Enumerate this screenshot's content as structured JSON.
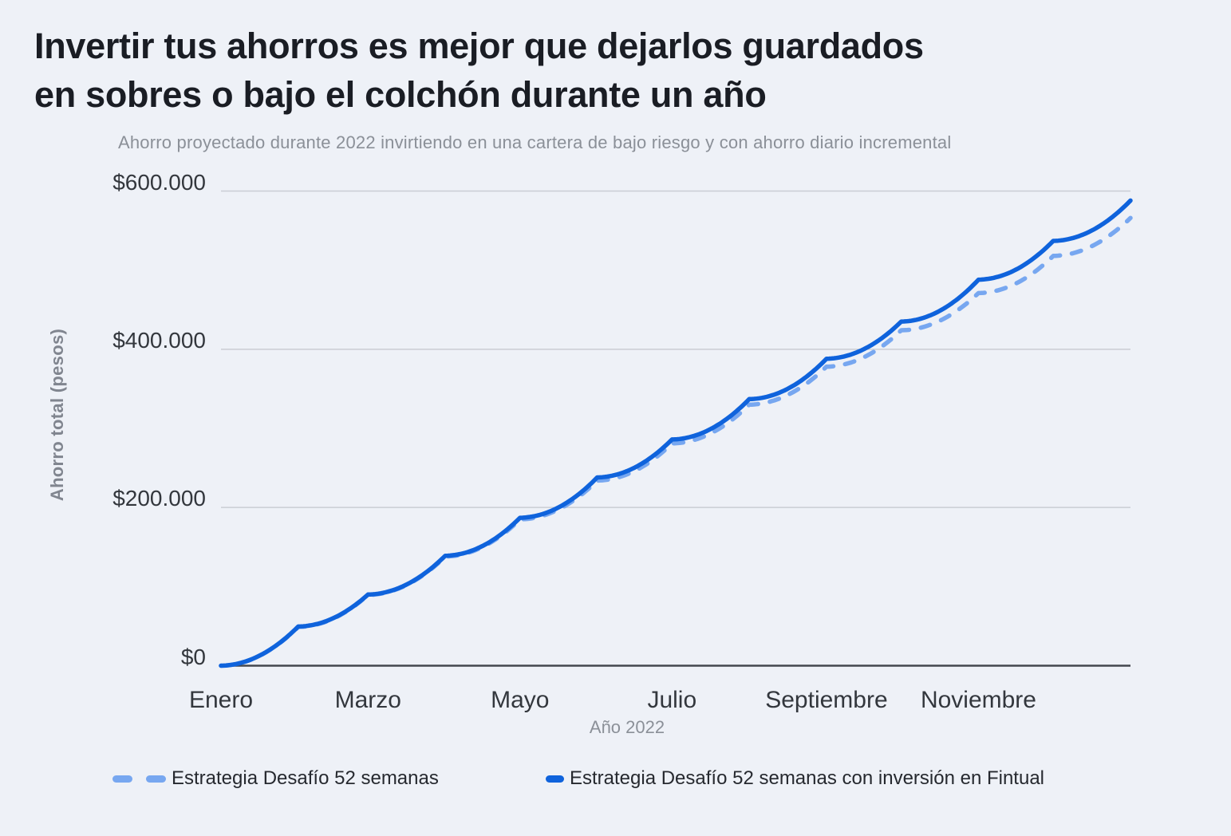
{
  "title": {
    "line1": "Invertir tus ahorros es mejor que dejarlos guardados",
    "line2": "en sobres o bajo el colchón durante un año"
  },
  "subtitle": "Ahorro proyectado durante 2022 invirtiendo en una cartera de bajo riesgo y con ahorro diario incremental",
  "colors": {
    "background": "#eef1f7",
    "solid_line": "#0f63dc",
    "dashed_line": "#77a7f0",
    "gridline": "#cacdd4",
    "axis_line": "#43474e",
    "title_text": "#1a1d24",
    "muted_text": "#8b9098"
  },
  "y_axis": {
    "title": "Ahorro total (pesos)",
    "ticks": [
      {
        "label": "$600.000",
        "value": 600000
      },
      {
        "label": "$400.000",
        "value": 400000
      },
      {
        "label": "$200.000",
        "value": 200000
      },
      {
        "label": "$0",
        "value": 0
      }
    ]
  },
  "x_axis": {
    "title": "Año 2022",
    "ticks": [
      {
        "label": "Enero",
        "day": 0
      },
      {
        "label": "Marzo",
        "day": 59
      },
      {
        "label": "Mayo",
        "day": 120
      },
      {
        "label": "Julio",
        "day": 181
      },
      {
        "label": "Septiembre",
        "day": 243
      },
      {
        "label": "Noviembre",
        "day": 304
      }
    ]
  },
  "legend": [
    {
      "label": "Estrategia Desafío 52 semanas",
      "style": "dashed",
      "color": "#77a7f0"
    },
    {
      "label": "Estrategia Desafío 52 semanas con inversión en Fintual",
      "style": "solid",
      "color": "#0f63dc"
    }
  ],
  "chart_data": {
    "type": "line",
    "title": "Ahorro proyectado durante 2022 invirtiendo en una cartera de bajo riesgo y con ahorro diario incremental",
    "xlabel": "Año 2022",
    "ylabel": "Ahorro total (pesos)",
    "x_unit": "day_of_year_2022",
    "xlim_days": [
      0,
      365
    ],
    "ylim": [
      0,
      600000
    ],
    "grid": "horizontal",
    "legend_position": "bottom",
    "month_days": [
      31,
      28,
      31,
      30,
      31,
      30,
      31,
      31,
      30,
      31,
      30,
      31
    ],
    "interpolation": "within month m of D days, value at day n = anchor[m] + (anchor[m+1]-anchor[m]) * n*(n+1)/(D*(D+1)) — incremental daily deposits produce a convex scallop each month with a slope kink at every month start",
    "series": [
      {
        "name": "Estrategia Desafío 52 semanas",
        "style": "dashed",
        "color": "#77a7f0",
        "anchor_days": [
          0,
          31,
          59,
          90,
          120,
          151,
          181,
          212,
          243,
          273,
          304,
          334,
          365
        ],
        "anchors_pesos": [
          0,
          49000,
          89500,
          138000,
          185000,
          234000,
          281000,
          330000,
          378000,
          424000,
          471000,
          518000,
          566000
        ]
      },
      {
        "name": "Estrategia Desafío 52 semanas con inversión en Fintual",
        "style": "solid",
        "color": "#0f63dc",
        "anchor_days": [
          0,
          31,
          59,
          90,
          120,
          151,
          181,
          212,
          243,
          273,
          304,
          334,
          365
        ],
        "anchors_pesos": [
          0,
          49500,
          90000,
          139000,
          187000,
          238000,
          286000,
          337000,
          388000,
          435000,
          488000,
          537000,
          588000
        ]
      }
    ]
  }
}
